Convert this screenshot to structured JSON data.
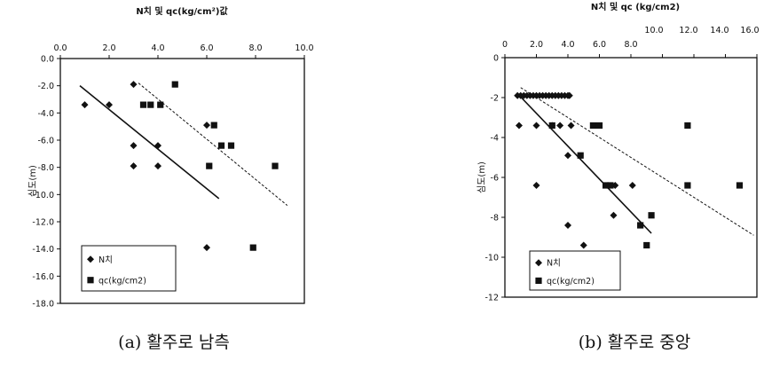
{
  "chart_data": [
    {
      "type": "scatter",
      "title": "N치 및 qc(kg/cm²)값",
      "ylabel": "심도(m)",
      "caption": "(a) 활주로 남측",
      "x_ticks": [
        "0.0",
        "2.0",
        "4.0",
        "6.0",
        "8.0",
        "10.0"
      ],
      "y_ticks": [
        "0.0",
        "-2.0",
        "-4.0",
        "-6.0",
        "-8.0",
        "-10.0",
        "-12.0",
        "-14.0",
        "-16.0",
        "-18.0"
      ],
      "xlim": [
        0,
        10
      ],
      "ylim": [
        -18,
        0
      ],
      "x_axis_position": "top",
      "grid": false,
      "legend_position": "bottom-left",
      "series": [
        {
          "name": "N치",
          "marker": "diamond",
          "points": [
            [
              1.0,
              -3.4
            ],
            [
              2.0,
              -3.4
            ],
            [
              3.0,
              -1.9
            ],
            [
              3.0,
              -6.4
            ],
            [
              3.0,
              -7.9
            ],
            [
              4.0,
              -6.4
            ],
            [
              4.0,
              -7.9
            ],
            [
              6.0,
              -4.9
            ],
            [
              6.0,
              -13.9
            ]
          ],
          "trendline": {
            "style": "solid",
            "from": [
              0.8,
              -2.0
            ],
            "to": [
              6.5,
              -10.3
            ]
          }
        },
        {
          "name": "qc(kg/cm2)",
          "marker": "square",
          "points": [
            [
              3.4,
              -3.4
            ],
            [
              3.7,
              -3.4
            ],
            [
              4.1,
              -3.4
            ],
            [
              4.7,
              -1.9
            ],
            [
              6.1,
              -7.9
            ],
            [
              6.3,
              -4.9
            ],
            [
              6.6,
              -6.4
            ],
            [
              7.0,
              -6.4
            ],
            [
              7.9,
              -13.9
            ],
            [
              8.8,
              -7.9
            ]
          ],
          "trendline": {
            "style": "dashed",
            "from": [
              3.2,
              -1.8
            ],
            "to": [
              9.3,
              -10.8
            ]
          }
        }
      ]
    },
    {
      "type": "scatter",
      "title": "N치 및 qc (kg/cm2)",
      "ylabel": "심도(m)",
      "caption": "(b) 활주로 중앙",
      "x_ticks_row1": [
        "0",
        "2.0",
        "4.0",
        "6.0",
        "8.0"
      ],
      "x_ticks_row2": [
        "10.0",
        "12.0",
        "14.0",
        "16.0"
      ],
      "y_ticks": [
        "0",
        "-2",
        "-4",
        "-6",
        "-8",
        "-10",
        "-12"
      ],
      "xlim": [
        0,
        16
      ],
      "ylim": [
        -12,
        0
      ],
      "x_axis_position": "top",
      "grid": false,
      "legend_position": "bottom-left",
      "series": [
        {
          "name": "N치",
          "marker": "diamond",
          "points": [
            [
              0.8,
              -1.9
            ],
            [
              1.0,
              -1.9
            ],
            [
              1.2,
              -1.9
            ],
            [
              1.4,
              -1.9
            ],
            [
              1.6,
              -1.9
            ],
            [
              1.8,
              -1.9
            ],
            [
              2.0,
              -1.9
            ],
            [
              2.2,
              -1.9
            ],
            [
              2.4,
              -1.9
            ],
            [
              2.6,
              -1.9
            ],
            [
              2.8,
              -1.9
            ],
            [
              3.0,
              -1.9
            ],
            [
              3.2,
              -1.9
            ],
            [
              3.4,
              -1.9
            ],
            [
              3.6,
              -1.9
            ],
            [
              3.8,
              -1.9
            ],
            [
              4.0,
              -1.9
            ],
            [
              4.1,
              -1.9
            ],
            [
              0.9,
              -3.4
            ],
            [
              2.0,
              -3.4
            ],
            [
              3.0,
              -3.4
            ],
            [
              3.5,
              -3.4
            ],
            [
              4.2,
              -3.4
            ],
            [
              4.0,
              -4.9
            ],
            [
              2.0,
              -6.4
            ],
            [
              7.0,
              -6.4
            ],
            [
              8.1,
              -6.4
            ],
            [
              6.9,
              -7.9
            ],
            [
              4.0,
              -8.4
            ],
            [
              5.0,
              -9.4
            ]
          ],
          "trendline": {
            "style": "solid",
            "from": [
              0.8,
              -1.8
            ],
            "to": [
              9.3,
              -8.8
            ]
          }
        },
        {
          "name": "qc(kg/cm2)",
          "marker": "square",
          "points": [
            [
              3.0,
              -3.4
            ],
            [
              5.6,
              -3.4
            ],
            [
              6.0,
              -3.4
            ],
            [
              4.8,
              -4.9
            ],
            [
              6.4,
              -6.4
            ],
            [
              6.7,
              -6.4
            ],
            [
              9.3,
              -7.9
            ],
            [
              8.6,
              -8.4
            ],
            [
              9.0,
              -9.4
            ],
            [
              11.6,
              -3.4
            ],
            [
              11.6,
              -6.4
            ],
            [
              14.9,
              -6.4
            ]
          ],
          "trendline": {
            "style": "dashed",
            "from": [
              1.0,
              -1.5
            ],
            "to": [
              15.8,
              -8.9
            ]
          }
        }
      ]
    }
  ]
}
